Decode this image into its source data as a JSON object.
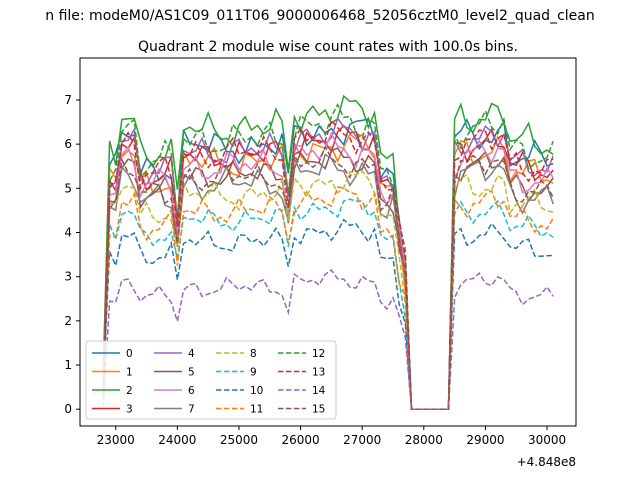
{
  "chart_data": {
    "type": "line",
    "suptitle": "n file: modeM0/AS1C09_011T06_9000006468_52056cztM0_level2_quad_clean",
    "title": "Quadrant 2 module wise count rates with 100.0s bins.",
    "xlabel": "",
    "ylabel": "",
    "x_offset_label": "+4.848e8",
    "xlim": [
      22420,
      30470
    ],
    "ylim": [
      -0.38,
      7.95
    ],
    "x_ticks": [
      23000,
      24000,
      25000,
      26000,
      27000,
      28000,
      29000,
      30000
    ],
    "x_tick_labels": [
      "23000",
      "24000",
      "25000",
      "26000",
      "27000",
      "28000",
      "29000",
      "30000"
    ],
    "y_ticks": [
      0,
      1,
      2,
      3,
      4,
      5,
      6,
      7
    ],
    "y_tick_labels": [
      "0",
      "1",
      "2",
      "3",
      "4",
      "5",
      "6",
      "7"
    ],
    "grid": false,
    "legend_position": "lower-left",
    "legend_columns": 4,
    "x_start": 22800,
    "x_step": 100,
    "series": [
      {
        "name": "0",
        "color": "#1f77b4",
        "dash": "solid",
        "level": 5.95,
        "amp": 0.4,
        "phase": 0.3
      },
      {
        "name": "1",
        "color": "#ff7f0e",
        "dash": "solid",
        "level": 5.6,
        "amp": 0.4,
        "phase": 1.1
      },
      {
        "name": "2",
        "color": "#2ca02c",
        "dash": "solid",
        "level": 6.35,
        "amp": 0.45,
        "phase": 2.0
      },
      {
        "name": "3",
        "color": "#d62728",
        "dash": "solid",
        "level": 5.75,
        "amp": 0.4,
        "phase": 2.7
      },
      {
        "name": "4",
        "color": "#9467bd",
        "dash": "solid",
        "level": 5.85,
        "amp": 0.4,
        "phase": 3.4
      },
      {
        "name": "5",
        "color": "#8c564b",
        "dash": "solid",
        "level": 5.3,
        "amp": 0.35,
        "phase": 4.1
      },
      {
        "name": "6",
        "color": "#e377c2",
        "dash": "solid",
        "level": 5.5,
        "amp": 0.4,
        "phase": 4.9
      },
      {
        "name": "7",
        "color": "#7f7f7f",
        "dash": "solid",
        "level": 5.1,
        "amp": 0.4,
        "phase": 5.6
      },
      {
        "name": "8",
        "color": "#bcbd22",
        "dash": "dashed",
        "level": 4.85,
        "amp": 0.35,
        "phase": 0.8
      },
      {
        "name": "9",
        "color": "#17becf",
        "dash": "dashed",
        "level": 4.3,
        "amp": 0.3,
        "phase": 1.6
      },
      {
        "name": "10",
        "color": "#1f77b4",
        "dash": "dashed",
        "level": 3.8,
        "amp": 0.3,
        "phase": 2.3
      },
      {
        "name": "11",
        "color": "#ff7f0e",
        "dash": "dashed",
        "level": 4.5,
        "amp": 0.35,
        "phase": 3.0
      },
      {
        "name": "12",
        "color": "#2ca02c",
        "dash": "dashed",
        "level": 6.1,
        "amp": 0.45,
        "phase": 3.8
      },
      {
        "name": "13",
        "color": "#d62728",
        "dash": "dashed",
        "level": 5.8,
        "amp": 0.4,
        "phase": 4.5
      },
      {
        "name": "14",
        "color": "#9467bd",
        "dash": "dashed",
        "level": 2.75,
        "amp": 0.25,
        "phase": 5.2
      },
      {
        "name": "15",
        "color": "#8c564b",
        "dash": "dashed",
        "level": 5.25,
        "amp": 0.35,
        "phase": 6.0
      }
    ]
  }
}
